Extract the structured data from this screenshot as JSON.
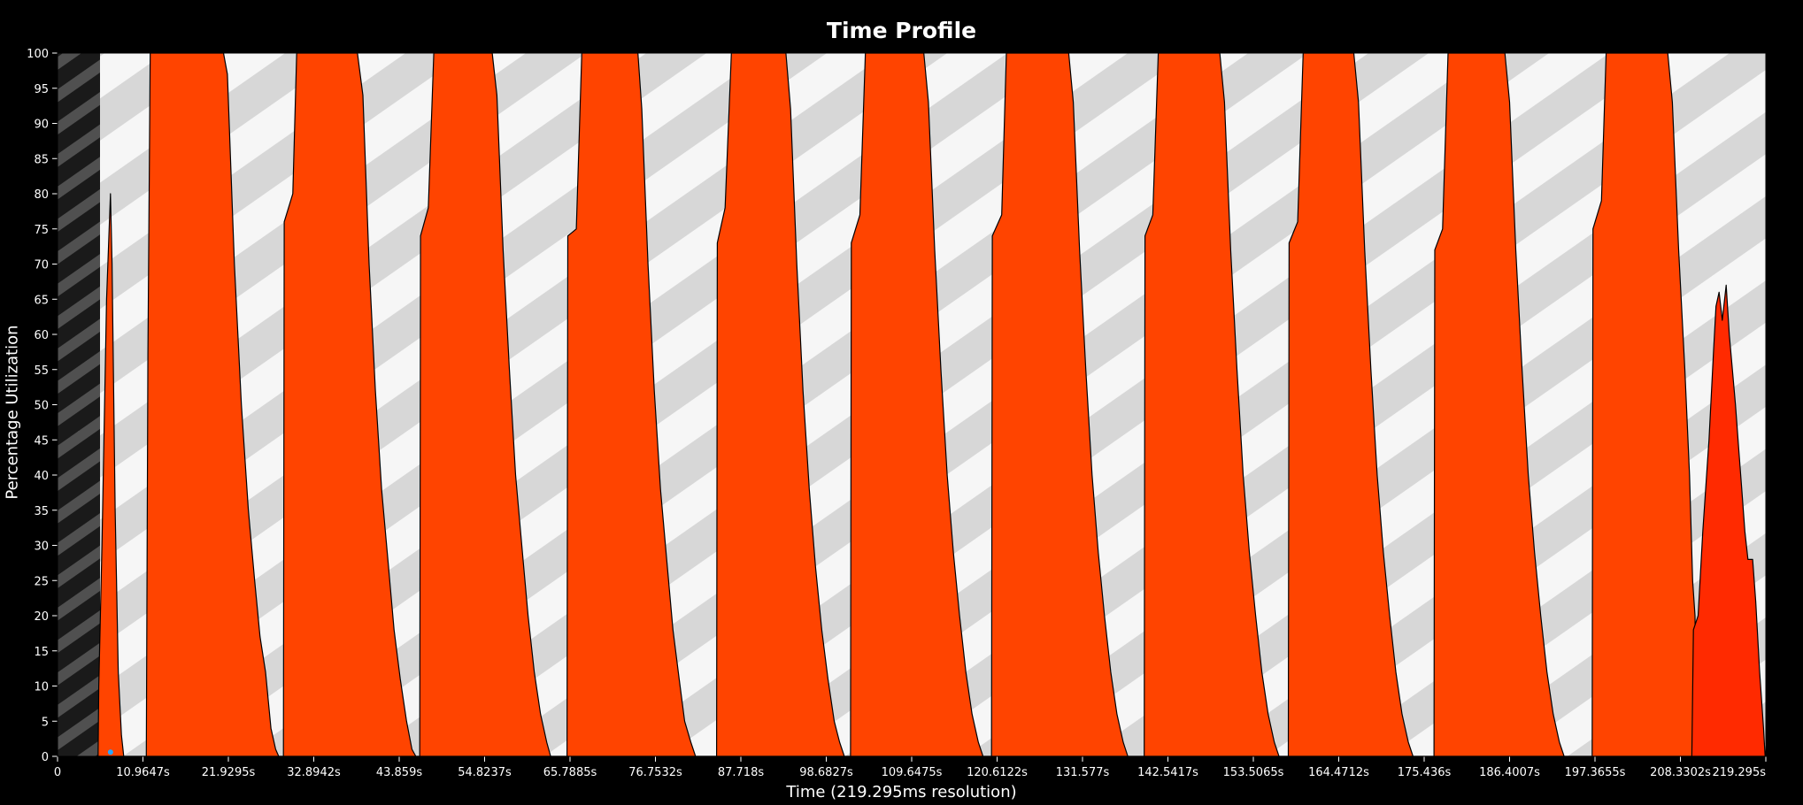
{
  "chart_data": {
    "type": "area",
    "title": "Time Profile",
    "xlabel": "Time (219.295ms resolution)",
    "ylabel": "Percentage Utilization",
    "xlim": [
      0,
      219.295
    ],
    "ylim": [
      0,
      100
    ],
    "x_tick_labels": [
      "0",
      "10.9647s",
      "21.9295s",
      "32.8942s",
      "43.859s",
      "54.8237s",
      "65.7885s",
      "76.7532s",
      "87.718s",
      "98.6827s",
      "109.6475s",
      "120.6122s",
      "131.577s",
      "142.5417s",
      "153.5065s",
      "164.4712s",
      "175.436s",
      "186.4007s",
      "197.3655s",
      "208.3302s",
      "219.295s"
    ],
    "y_tick_labels": [
      "0",
      "5",
      "10",
      "15",
      "20",
      "25",
      "30",
      "35",
      "40",
      "45",
      "50",
      "55",
      "60",
      "65",
      "70",
      "75",
      "80",
      "85",
      "90",
      "95",
      "100"
    ],
    "colors": {
      "primary_fill": "#ff4400",
      "secondary_fill": "#ff2a00",
      "startup_fill": "#ff7a1a",
      "outline": "#000000",
      "marker": "#2aa7ff"
    },
    "series": [
      {
        "values_xy": [
          [
            5.2,
            0
          ],
          [
            5.3,
            10
          ],
          [
            5.7,
            30
          ],
          [
            6.3,
            65
          ],
          [
            6.8,
            80
          ],
          [
            7.0,
            70
          ],
          [
            7.4,
            35
          ],
          [
            7.8,
            12
          ],
          [
            8.2,
            3
          ],
          [
            8.5,
            0
          ],
          [
            11.4,
            0
          ],
          [
            11.6,
            57
          ],
          [
            11.9,
            100
          ],
          [
            21.3,
            100
          ],
          [
            21.8,
            97
          ],
          [
            22.7,
            70
          ],
          [
            23.6,
            50
          ],
          [
            24.5,
            35
          ],
          [
            25.3,
            25
          ],
          [
            26.0,
            17
          ],
          [
            26.7,
            12
          ],
          [
            27.4,
            4
          ],
          [
            28.0,
            1
          ],
          [
            28.4,
            0
          ],
          [
            29.0,
            0
          ],
          [
            29.1,
            76
          ],
          [
            30.2,
            80
          ],
          [
            30.7,
            100
          ],
          [
            38.5,
            100
          ],
          [
            39.2,
            94
          ],
          [
            40.0,
            70
          ],
          [
            40.8,
            52
          ],
          [
            41.6,
            38
          ],
          [
            42.4,
            28
          ],
          [
            43.2,
            18
          ],
          [
            44.0,
            11
          ],
          [
            44.8,
            5
          ],
          [
            45.5,
            1
          ],
          [
            46.0,
            0
          ],
          [
            46.5,
            0
          ],
          [
            46.6,
            74
          ],
          [
            47.6,
            78
          ],
          [
            48.3,
            100
          ],
          [
            55.8,
            100
          ],
          [
            56.4,
            94
          ],
          [
            57.2,
            72
          ],
          [
            58.0,
            55
          ],
          [
            58.8,
            40
          ],
          [
            59.6,
            30
          ],
          [
            60.4,
            20
          ],
          [
            61.2,
            12
          ],
          [
            62.0,
            6
          ],
          [
            62.8,
            2
          ],
          [
            63.3,
            0
          ],
          [
            65.4,
            0
          ],
          [
            65.5,
            74
          ],
          [
            66.6,
            75
          ],
          [
            67.3,
            100
          ],
          [
            74.5,
            100
          ],
          [
            75.0,
            92
          ],
          [
            75.8,
            70
          ],
          [
            76.6,
            52
          ],
          [
            77.4,
            38
          ],
          [
            78.2,
            28
          ],
          [
            79.0,
            18
          ],
          [
            79.8,
            11
          ],
          [
            80.5,
            5
          ],
          [
            81.3,
            2
          ],
          [
            81.9,
            0
          ],
          [
            84.6,
            0
          ],
          [
            84.7,
            73
          ],
          [
            85.7,
            78
          ],
          [
            86.5,
            100
          ],
          [
            93.5,
            100
          ],
          [
            94.1,
            92
          ],
          [
            94.9,
            70
          ],
          [
            95.7,
            52
          ],
          [
            96.5,
            38
          ],
          [
            97.3,
            27
          ],
          [
            98.1,
            18
          ],
          [
            98.9,
            11
          ],
          [
            99.7,
            5
          ],
          [
            100.4,
            2
          ],
          [
            101.0,
            0
          ],
          [
            101.8,
            0
          ],
          [
            101.9,
            73
          ],
          [
            103.0,
            77
          ],
          [
            103.7,
            100
          ],
          [
            111.2,
            100
          ],
          [
            111.8,
            93
          ],
          [
            112.6,
            72
          ],
          [
            113.4,
            55
          ],
          [
            114.2,
            40
          ],
          [
            115.0,
            29
          ],
          [
            115.8,
            20
          ],
          [
            116.6,
            12
          ],
          [
            117.4,
            6
          ],
          [
            118.2,
            2
          ],
          [
            118.8,
            0
          ],
          [
            119.9,
            0
          ],
          [
            120.0,
            74
          ],
          [
            121.2,
            77
          ],
          [
            121.8,
            100
          ],
          [
            129.8,
            100
          ],
          [
            130.4,
            93
          ],
          [
            131.2,
            72
          ],
          [
            132.0,
            55
          ],
          [
            132.8,
            40
          ],
          [
            133.6,
            29
          ],
          [
            134.4,
            20
          ],
          [
            135.2,
            12
          ],
          [
            136.0,
            6
          ],
          [
            136.8,
            2
          ],
          [
            137.4,
            0
          ],
          [
            139.5,
            0
          ],
          [
            139.6,
            74
          ],
          [
            140.6,
            77
          ],
          [
            141.3,
            100
          ],
          [
            149.2,
            100
          ],
          [
            149.8,
            93
          ],
          [
            150.6,
            72
          ],
          [
            151.4,
            55
          ],
          [
            152.2,
            40
          ],
          [
            153.0,
            29
          ],
          [
            153.8,
            20
          ],
          [
            154.6,
            12
          ],
          [
            155.4,
            6
          ],
          [
            156.2,
            2
          ],
          [
            156.8,
            0
          ],
          [
            158.0,
            0
          ],
          [
            158.1,
            73
          ],
          [
            159.2,
            76
          ],
          [
            159.9,
            100
          ],
          [
            166.4,
            100
          ],
          [
            167.0,
            93
          ],
          [
            167.8,
            72
          ],
          [
            168.6,
            55
          ],
          [
            169.4,
            40
          ],
          [
            170.2,
            29
          ],
          [
            171.0,
            20
          ],
          [
            171.8,
            12
          ],
          [
            172.6,
            6
          ],
          [
            173.4,
            2
          ],
          [
            174.0,
            0
          ],
          [
            176.7,
            0
          ],
          [
            176.8,
            72
          ],
          [
            177.8,
            75
          ],
          [
            178.5,
            100
          ],
          [
            185.8,
            100
          ],
          [
            186.4,
            93
          ],
          [
            187.2,
            72
          ],
          [
            188.0,
            55
          ],
          [
            188.8,
            40
          ],
          [
            189.6,
            29
          ],
          [
            190.4,
            20
          ],
          [
            191.2,
            12
          ],
          [
            192.0,
            6
          ],
          [
            192.8,
            2
          ],
          [
            193.4,
            0
          ],
          [
            197.0,
            0
          ],
          [
            197.1,
            75
          ],
          [
            198.2,
            79
          ],
          [
            198.8,
            100
          ],
          [
            206.7,
            100
          ],
          [
            207.3,
            93
          ],
          [
            208.1,
            72
          ],
          [
            208.9,
            55
          ],
          [
            209.5,
            40
          ],
          [
            209.9,
            25
          ],
          [
            210.2,
            20
          ],
          [
            210.4,
            0
          ]
        ]
      },
      {
        "values_xy": [
          [
            209.8,
            0
          ],
          [
            210.0,
            18
          ],
          [
            210.6,
            20
          ],
          [
            211.2,
            32
          ],
          [
            212.0,
            45
          ],
          [
            212.6,
            58
          ],
          [
            212.9,
            64
          ],
          [
            213.3,
            66
          ],
          [
            213.7,
            62
          ],
          [
            214.2,
            67
          ],
          [
            214.6,
            60
          ],
          [
            215.0,
            55
          ],
          [
            215.4,
            50
          ],
          [
            215.8,
            44
          ],
          [
            216.2,
            38
          ],
          [
            216.6,
            32
          ],
          [
            217.0,
            28
          ],
          [
            217.6,
            28
          ],
          [
            218.0,
            22
          ],
          [
            218.5,
            12
          ],
          [
            219.0,
            4
          ],
          [
            219.2,
            0
          ]
        ]
      }
    ]
  }
}
